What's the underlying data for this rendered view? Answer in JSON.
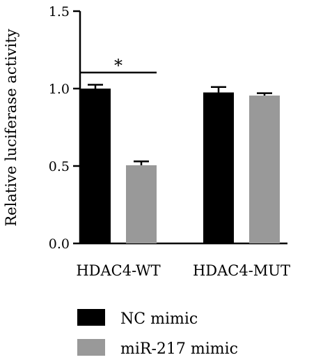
{
  "chart_data": {
    "type": "bar",
    "title": "",
    "xlabel": "",
    "ylabel": "Relative luciferase activity",
    "ylim": [
      0,
      1.5
    ],
    "yticks": [
      "0.0",
      "0.5",
      "1.0",
      "1.5"
    ],
    "categories": [
      "HDAC4-WT",
      "HDAC4-MUT"
    ],
    "series": [
      {
        "name": "NC mimic",
        "values": [
          1.0,
          0.975
        ],
        "errors": [
          0.025,
          0.035
        ],
        "color": "#000000"
      },
      {
        "name": "miR-217 mimic",
        "values": [
          0.505,
          0.955
        ],
        "errors": [
          0.025,
          0.015
        ],
        "color": "#999999"
      }
    ],
    "annotations": [
      {
        "text": "*",
        "category": "HDAC4-WT",
        "between_series": [
          0,
          1
        ]
      }
    ],
    "grid": false,
    "legend_placement": "bottom-left"
  }
}
